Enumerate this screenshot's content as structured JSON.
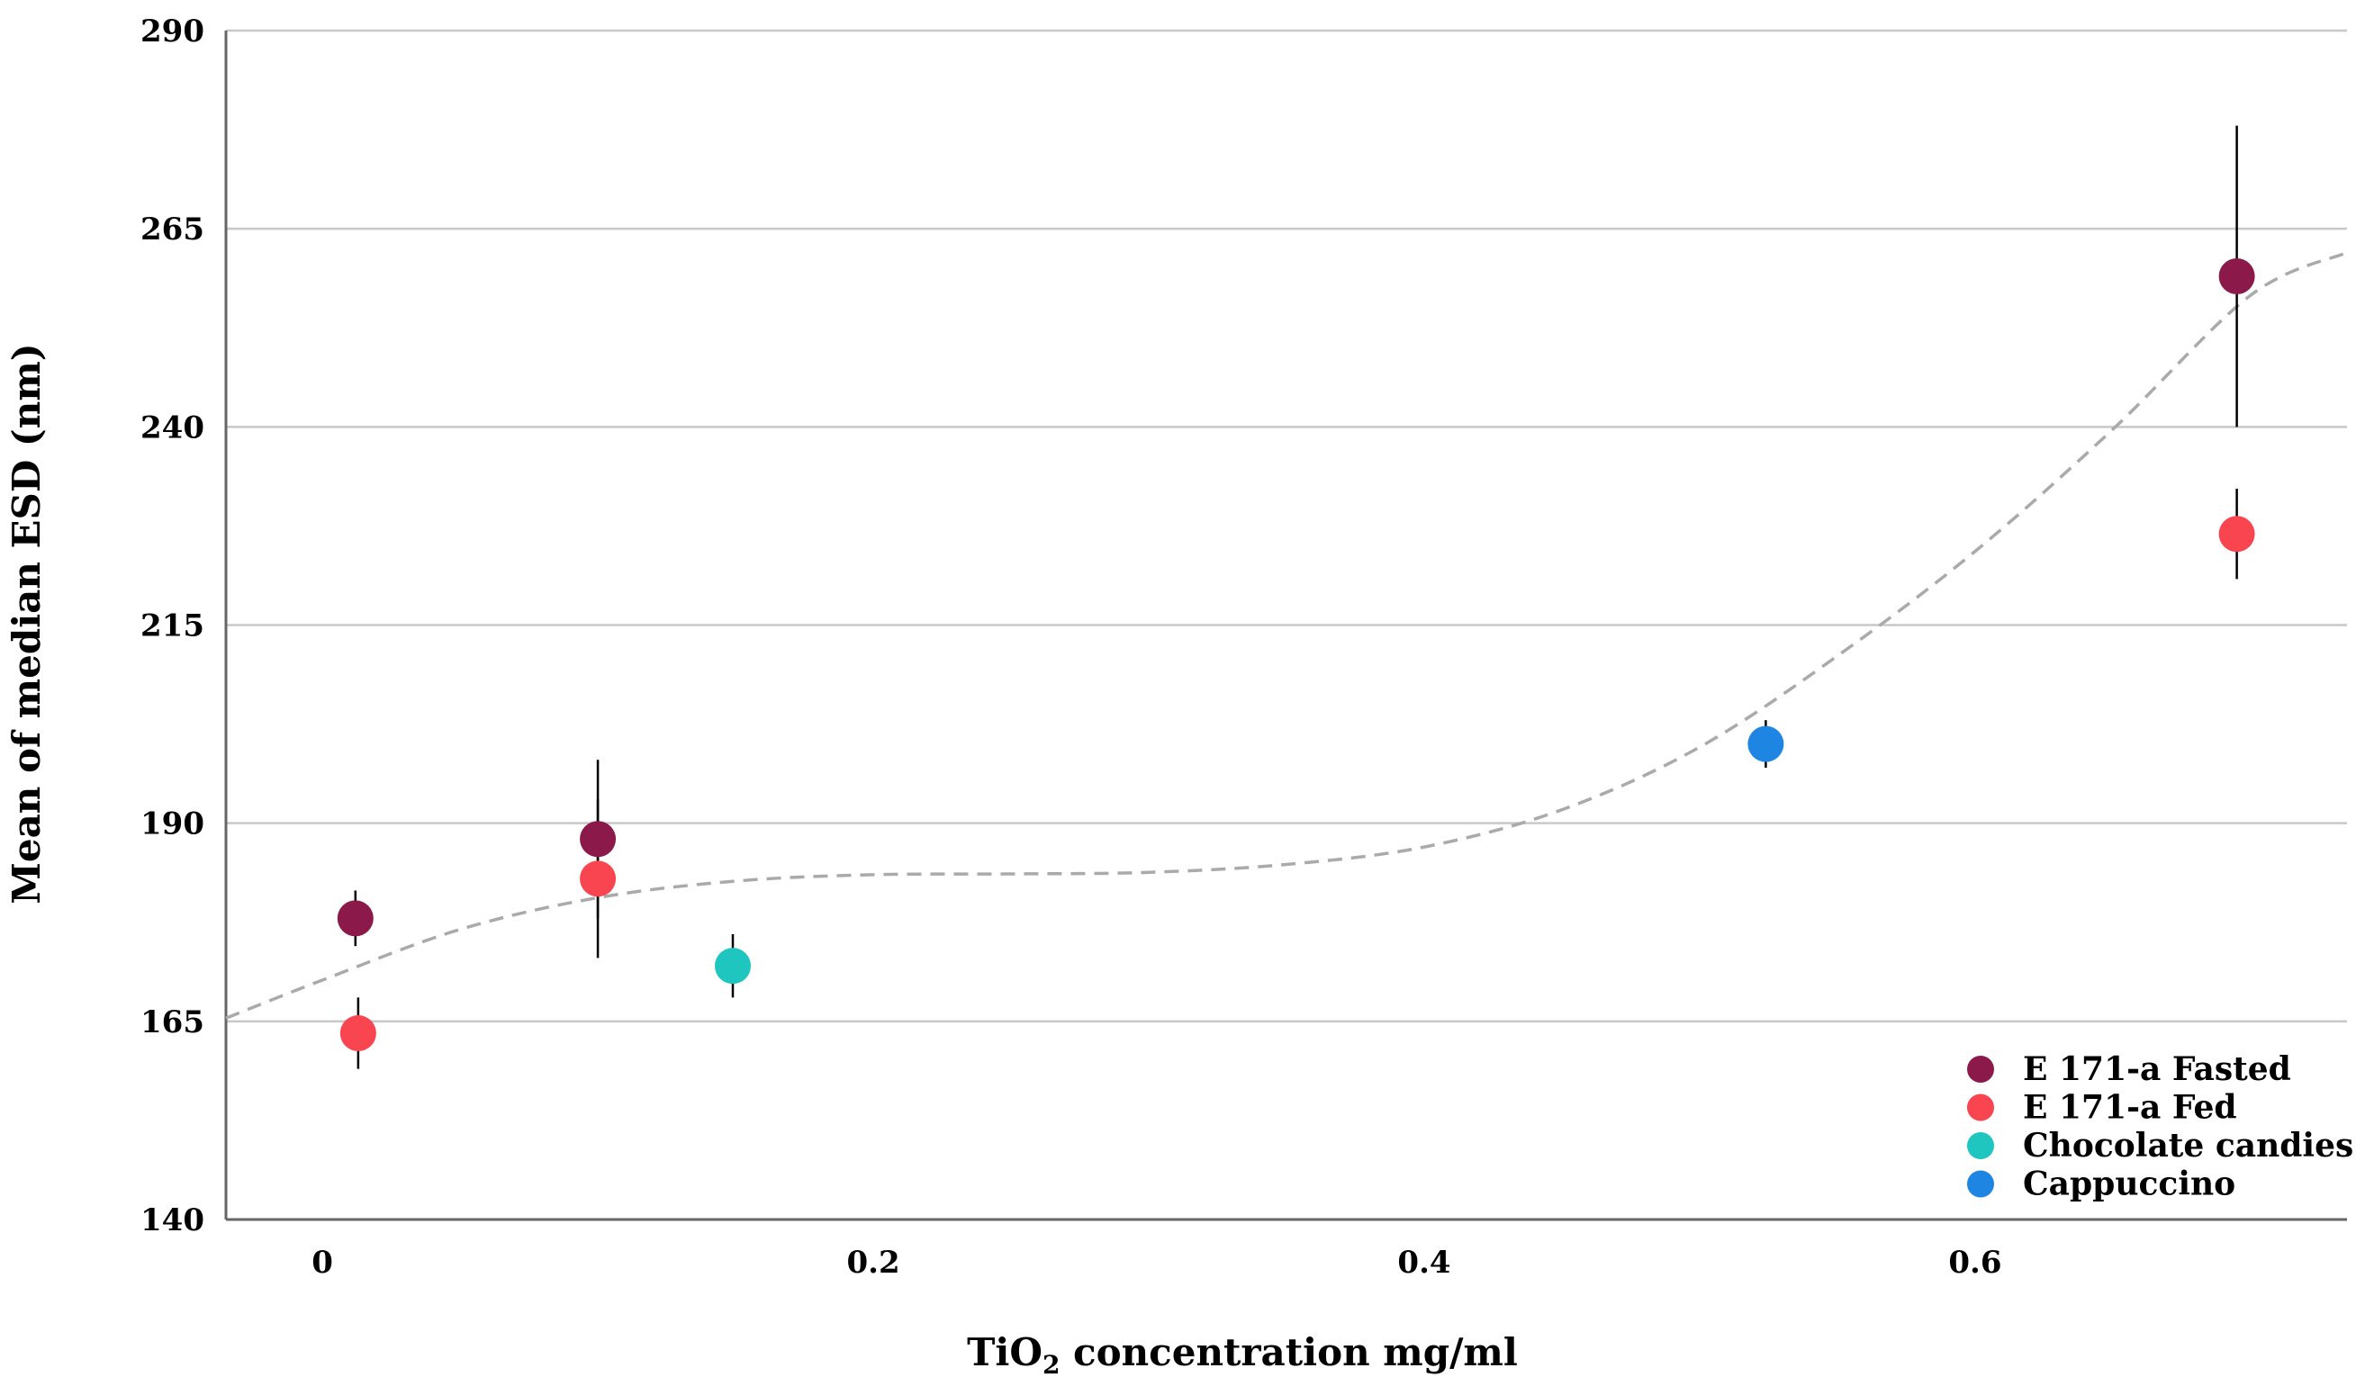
{
  "chart_data": {
    "type": "scatter",
    "title": "",
    "xlabel": {
      "main": "TiO",
      "subscript": "2",
      "rest": " concentration mg/ml"
    },
    "ylabel": "Mean of median ESD (nm)",
    "xlim": [
      -0.035,
      0.735
    ],
    "ylim": [
      140,
      290
    ],
    "xticks": [
      0,
      0.2,
      0.4,
      0.6
    ],
    "xtick_labels": [
      "0",
      "0.2",
      "0.4",
      "0.6"
    ],
    "yticks": [
      140,
      165,
      190,
      215,
      240,
      265,
      290
    ],
    "ytick_labels": [
      "140",
      "165",
      "190",
      "215",
      "240",
      "265",
      "290"
    ],
    "grid": "horizontal",
    "legend_position": "bottom-right",
    "series": [
      {
        "name": "E 171-a Fasted",
        "color": "#8b1a4a",
        "points": [
          {
            "x": 0.012,
            "y": 178,
            "err": 3.5
          },
          {
            "x": 0.1,
            "y": 188,
            "err": 10
          },
          {
            "x": 0.695,
            "y": 259,
            "err": 19
          }
        ]
      },
      {
        "name": "E 171-a Fed",
        "color": "#f8454f",
        "points": [
          {
            "x": 0.013,
            "y": 163.5,
            "err": 4.5
          },
          {
            "x": 0.1,
            "y": 183,
            "err": 10
          },
          {
            "x": 0.695,
            "y": 226.5,
            "err": 5.7
          }
        ]
      },
      {
        "name": "Chocolate candies",
        "color": "#1fc6c0",
        "points": [
          {
            "x": 0.149,
            "y": 172,
            "err": 4
          }
        ]
      },
      {
        "name": "Cappuccino",
        "color": "#1e86e2",
        "points": [
          {
            "x": 0.524,
            "y": 200,
            "err": 3
          }
        ]
      }
    ],
    "trendline": {
      "style": "dashed",
      "color": "#aaaaaa",
      "points": [
        [
          -0.035,
          165.4
        ],
        [
          0,
          170.2
        ],
        [
          0.05,
          176.6
        ],
        [
          0.1,
          180.6
        ],
        [
          0.15,
          182.7
        ],
        [
          0.2,
          183.5
        ],
        [
          0.25,
          183.6
        ],
        [
          0.3,
          183.8
        ],
        [
          0.35,
          184.8
        ],
        [
          0.4,
          187
        ],
        [
          0.45,
          191.7
        ],
        [
          0.5,
          199.6
        ],
        [
          0.55,
          211.1
        ],
        [
          0.6,
          224.3
        ],
        [
          0.65,
          239.7
        ],
        [
          0.7,
          256.6
        ],
        [
          0.735,
          262
        ]
      ]
    }
  }
}
